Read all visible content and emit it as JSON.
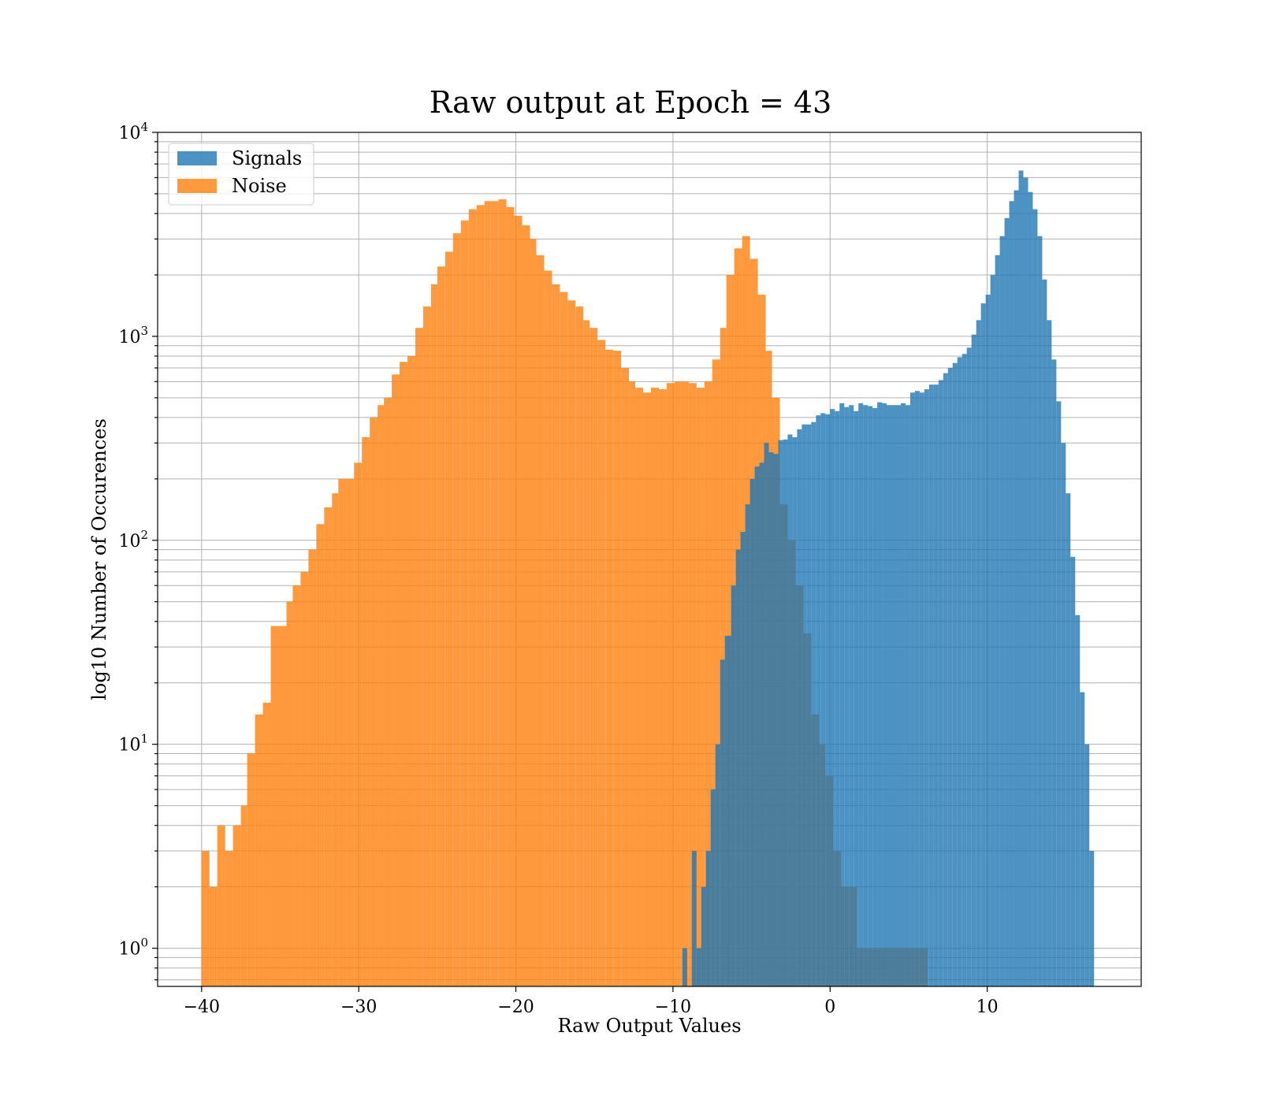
{
  "chart_data": {
    "type": "histogram",
    "title": "Raw output at Epoch = 43",
    "xlabel": "Raw Output Values",
    "ylabel": "log10 Number of Occurences",
    "xlim": [
      -42.8,
      19.8
    ],
    "ylim": [
      0.65,
      10000
    ],
    "yscale": "log",
    "grid": true,
    "legend_position": "top-left",
    "x_ticks": [
      {
        "value": -40,
        "label": "−40"
      },
      {
        "value": -30,
        "label": "−30"
      },
      {
        "value": -20,
        "label": "−20"
      },
      {
        "value": -10,
        "label": "−10"
      },
      {
        "value": 0,
        "label": "0"
      },
      {
        "value": 10,
        "label": "10"
      }
    ],
    "y_ticks": [
      {
        "value": 1,
        "base": "10",
        "exp": "0"
      },
      {
        "value": 10,
        "base": "10",
        "exp": "1"
      },
      {
        "value": 100,
        "base": "10",
        "exp": "2"
      },
      {
        "value": 1000,
        "base": "10",
        "exp": "3"
      },
      {
        "value": 10000,
        "base": "10",
        "exp": "4"
      }
    ],
    "series": [
      {
        "name": "Signals",
        "color": "#1f77b4",
        "opacity": 0.8,
        "bins": [
          [
            -9.4,
            -9.1,
            1
          ],
          [
            -8.8,
            -8.5,
            3
          ],
          [
            -8.5,
            -8.2,
            1
          ],
          [
            -8.2,
            -7.9,
            2
          ],
          [
            -7.9,
            -7.6,
            3
          ],
          [
            -7.6,
            -7.3,
            6
          ],
          [
            -7.3,
            -7.0,
            10
          ],
          [
            -7.0,
            -6.7,
            26
          ],
          [
            -6.7,
            -6.3,
            34
          ],
          [
            -6.3,
            -6.0,
            60
          ],
          [
            -6.0,
            -5.7,
            90
          ],
          [
            -5.7,
            -5.4,
            110
          ],
          [
            -5.4,
            -5.1,
            150
          ],
          [
            -5.1,
            -4.8,
            200
          ],
          [
            -4.8,
            -4.5,
            230
          ],
          [
            -4.5,
            -4.2,
            240
          ],
          [
            -4.2,
            -3.9,
            300
          ],
          [
            -3.9,
            -3.6,
            270
          ],
          [
            -3.6,
            -3.3,
            265
          ],
          [
            -3.3,
            -3.0,
            310
          ],
          [
            -3.0,
            -2.7,
            312
          ],
          [
            -2.7,
            -2.4,
            330
          ],
          [
            -2.4,
            -2.1,
            320
          ],
          [
            -2.1,
            -1.8,
            350
          ],
          [
            -1.8,
            -1.5,
            370
          ],
          [
            -1.5,
            -1.2,
            370
          ],
          [
            -1.2,
            -0.9,
            380
          ],
          [
            -0.9,
            -0.6,
            410
          ],
          [
            -0.6,
            -0.3,
            420
          ],
          [
            -0.3,
            0.0,
            415
          ],
          [
            0.0,
            0.3,
            440
          ],
          [
            0.3,
            0.6,
            430
          ],
          [
            0.6,
            0.9,
            470
          ],
          [
            0.9,
            1.2,
            450
          ],
          [
            1.2,
            1.5,
            460
          ],
          [
            1.5,
            1.8,
            430
          ],
          [
            1.8,
            2.1,
            470
          ],
          [
            2.1,
            2.4,
            460
          ],
          [
            2.4,
            2.7,
            455
          ],
          [
            2.7,
            3.0,
            445
          ],
          [
            3.0,
            3.3,
            475
          ],
          [
            3.3,
            3.6,
            470
          ],
          [
            3.6,
            3.9,
            460
          ],
          [
            3.9,
            4.2,
            460
          ],
          [
            4.2,
            4.5,
            460
          ],
          [
            4.5,
            4.8,
            470
          ],
          [
            4.8,
            5.1,
            460
          ],
          [
            5.1,
            5.4,
            530
          ],
          [
            5.4,
            5.7,
            540
          ],
          [
            5.7,
            6.0,
            530
          ],
          [
            6.0,
            6.3,
            550
          ],
          [
            6.3,
            6.6,
            580
          ],
          [
            6.6,
            6.9,
            580
          ],
          [
            6.9,
            7.2,
            610
          ],
          [
            7.2,
            7.5,
            660
          ],
          [
            7.5,
            7.8,
            700
          ],
          [
            7.8,
            8.1,
            740
          ],
          [
            8.1,
            8.4,
            790
          ],
          [
            8.4,
            8.7,
            820
          ],
          [
            8.7,
            9.0,
            880
          ],
          [
            9.0,
            9.3,
            1020
          ],
          [
            9.3,
            9.6,
            1200
          ],
          [
            9.6,
            9.9,
            1450
          ],
          [
            9.9,
            10.2,
            1600
          ],
          [
            10.2,
            10.5,
            2000
          ],
          [
            10.5,
            10.8,
            2500
          ],
          [
            10.8,
            11.1,
            3100
          ],
          [
            11.1,
            11.4,
            3800
          ],
          [
            11.4,
            11.7,
            4600
          ],
          [
            11.7,
            12.0,
            5200
          ],
          [
            12.0,
            12.3,
            6500
          ],
          [
            12.3,
            12.6,
            6000
          ],
          [
            12.6,
            12.9,
            5100
          ],
          [
            12.9,
            13.2,
            4200
          ],
          [
            13.2,
            13.5,
            3100
          ],
          [
            13.5,
            13.8,
            1900
          ],
          [
            13.8,
            14.1,
            1200
          ],
          [
            14.1,
            14.4,
            770
          ],
          [
            14.4,
            14.7,
            480
          ],
          [
            14.7,
            15.0,
            300
          ],
          [
            15.0,
            15.3,
            170
          ],
          [
            15.3,
            15.6,
            83
          ],
          [
            15.6,
            15.9,
            43
          ],
          [
            15.9,
            16.2,
            18
          ],
          [
            16.2,
            16.5,
            10
          ],
          [
            16.5,
            16.8,
            3
          ]
        ]
      },
      {
        "name": "Noise",
        "color": "#ff7f0e",
        "opacity": 0.8,
        "bins": [
          [
            -40.0,
            -39.5,
            3
          ],
          [
            -39.5,
            -39.0,
            2
          ],
          [
            -39.0,
            -38.5,
            4
          ],
          [
            -38.5,
            -38.0,
            3
          ],
          [
            -38.0,
            -37.5,
            4
          ],
          [
            -37.5,
            -37.1,
            5
          ],
          [
            -37.1,
            -36.6,
            9
          ],
          [
            -36.6,
            -36.1,
            14
          ],
          [
            -36.1,
            -35.6,
            16
          ],
          [
            -35.6,
            -35.1,
            38
          ],
          [
            -35.1,
            -34.6,
            38
          ],
          [
            -34.6,
            -34.2,
            50
          ],
          [
            -34.2,
            -33.7,
            60
          ],
          [
            -33.7,
            -33.2,
            70
          ],
          [
            -33.2,
            -32.7,
            90
          ],
          [
            -32.7,
            -32.2,
            120
          ],
          [
            -32.2,
            -31.7,
            145
          ],
          [
            -31.7,
            -31.3,
            170
          ],
          [
            -31.3,
            -30.8,
            200
          ],
          [
            -30.8,
            -30.3,
            200
          ],
          [
            -30.3,
            -29.8,
            240
          ],
          [
            -29.8,
            -29.3,
            320
          ],
          [
            -29.3,
            -28.8,
            400
          ],
          [
            -28.8,
            -28.4,
            460
          ],
          [
            -28.4,
            -27.9,
            500
          ],
          [
            -27.9,
            -27.4,
            650
          ],
          [
            -27.4,
            -26.9,
            750
          ],
          [
            -26.9,
            -26.4,
            800
          ],
          [
            -26.4,
            -25.9,
            1100
          ],
          [
            -25.9,
            -25.4,
            1400
          ],
          [
            -25.4,
            -25.0,
            1800
          ],
          [
            -25.0,
            -24.5,
            2200
          ],
          [
            -24.5,
            -24.0,
            2600
          ],
          [
            -24.0,
            -23.5,
            3200
          ],
          [
            -23.5,
            -23.0,
            3700
          ],
          [
            -23.0,
            -22.5,
            4200
          ],
          [
            -22.5,
            -22.0,
            4400
          ],
          [
            -22.0,
            -21.6,
            4600
          ],
          [
            -21.6,
            -21.1,
            4600
          ],
          [
            -21.1,
            -20.6,
            4700
          ],
          [
            -20.6,
            -20.1,
            4300
          ],
          [
            -20.1,
            -19.6,
            3900
          ],
          [
            -19.6,
            -19.1,
            3500
          ],
          [
            -19.1,
            -18.7,
            3000
          ],
          [
            -18.7,
            -18.2,
            2500
          ],
          [
            -18.2,
            -17.7,
            2100
          ],
          [
            -17.7,
            -17.2,
            1800
          ],
          [
            -17.2,
            -16.7,
            1650
          ],
          [
            -16.7,
            -16.2,
            1500
          ],
          [
            -16.2,
            -15.7,
            1400
          ],
          [
            -15.7,
            -15.3,
            1200
          ],
          [
            -15.3,
            -14.8,
            1100
          ],
          [
            -14.8,
            -14.3,
            960
          ],
          [
            -14.3,
            -13.8,
            860
          ],
          [
            -13.8,
            -13.3,
            850
          ],
          [
            -13.3,
            -12.8,
            700
          ],
          [
            -12.8,
            -12.4,
            600
          ],
          [
            -12.4,
            -11.9,
            560
          ],
          [
            -11.9,
            -11.4,
            530
          ],
          [
            -11.4,
            -10.9,
            560
          ],
          [
            -10.9,
            -10.4,
            550
          ],
          [
            -10.4,
            -9.9,
            590
          ],
          [
            -9.9,
            -9.5,
            600
          ],
          [
            -9.5,
            -9.0,
            600
          ],
          [
            -9.0,
            -8.5,
            590
          ],
          [
            -8.5,
            -8.0,
            560
          ],
          [
            -8.0,
            -7.5,
            600
          ],
          [
            -7.5,
            -7.0,
            770
          ],
          [
            -7.0,
            -6.6,
            1100
          ],
          [
            -6.6,
            -6.1,
            2000
          ],
          [
            -6.1,
            -5.6,
            2700
          ],
          [
            -5.6,
            -5.1,
            3100
          ],
          [
            -5.1,
            -4.6,
            2400
          ],
          [
            -4.6,
            -4.1,
            1600
          ],
          [
            -4.1,
            -3.7,
            850
          ],
          [
            -3.7,
            -3.2,
            500
          ],
          [
            -3.2,
            -2.7,
            150
          ],
          [
            -2.7,
            -2.2,
            100
          ],
          [
            -2.2,
            -1.7,
            60
          ],
          [
            -1.7,
            -1.2,
            35
          ],
          [
            -1.2,
            -0.7,
            14
          ],
          [
            -0.7,
            -0.3,
            10
          ],
          [
            -0.3,
            0.2,
            7
          ],
          [
            0.2,
            0.7,
            3
          ],
          [
            0.7,
            1.2,
            2
          ],
          [
            1.2,
            1.7,
            2
          ],
          [
            1.7,
            2.2,
            1
          ],
          [
            2.2,
            2.7,
            1
          ],
          [
            2.7,
            3.2,
            1
          ],
          [
            3.2,
            3.7,
            1
          ],
          [
            3.7,
            4.2,
            1
          ],
          [
            4.2,
            4.7,
            1
          ],
          [
            4.7,
            5.2,
            1
          ],
          [
            5.2,
            5.7,
            1
          ],
          [
            5.7,
            6.2,
            1
          ]
        ]
      }
    ]
  }
}
